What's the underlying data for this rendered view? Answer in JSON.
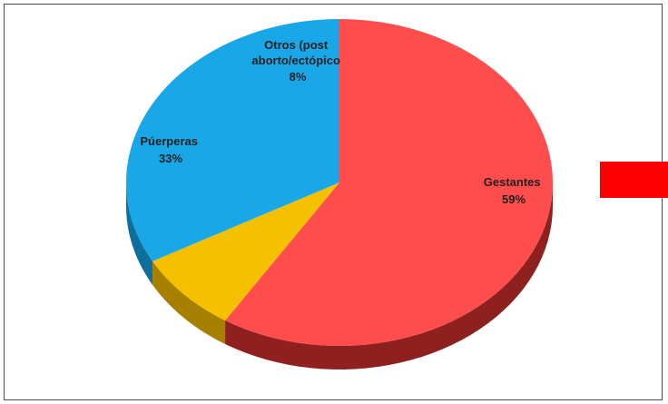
{
  "chart_data": {
    "type": "pie",
    "style": "3d",
    "slices": [
      {
        "label": "Gestantes",
        "value": 59,
        "value_label": "59%",
        "color": "#ff4c4c",
        "side_color": "#8e2020"
      },
      {
        "label": "Otros (post aborto/ectópico",
        "label_lines": [
          "Otros (post",
          "aborto/ectópico",
          "8%"
        ],
        "value": 8,
        "value_label": "8%",
        "color": "#f5c000",
        "side_color": "#a88000"
      },
      {
        "label": "Púerperas",
        "value": 33,
        "value_label": "33%",
        "color": "#1aa7e8",
        "side_color": "#0e6e9c"
      }
    ],
    "title": "",
    "legend": "none"
  },
  "side_marker": {
    "color": "#ff0000"
  }
}
